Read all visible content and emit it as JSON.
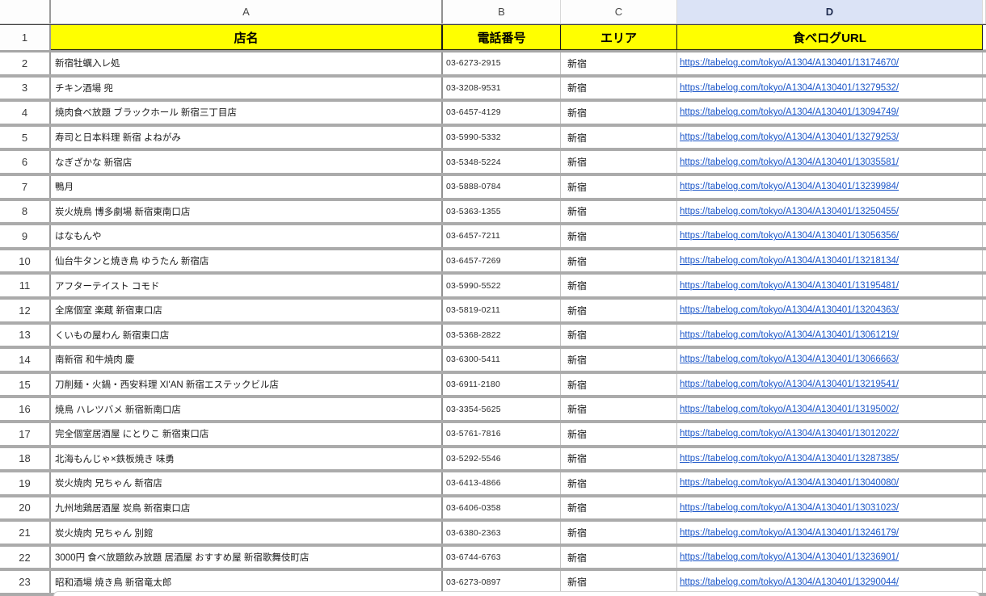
{
  "sheet": {
    "column_letters": {
      "a": "A",
      "b": "B",
      "c": "C",
      "d": "D"
    },
    "selected_column": "D",
    "header_row": {
      "row_number": "1",
      "name_label": "店名",
      "phone_label": "電話番号",
      "area_label": "エリア",
      "url_label": "食べログURL"
    },
    "colors": {
      "header_fill": "#ffff00",
      "selected_column_header_fill": "#dbe3f6",
      "link_color": "#1a55c8",
      "row_separator": "#ababab"
    },
    "rows": [
      {
        "num": "2",
        "name": "新宿牡蠣入レ処",
        "phone": "03-6273-2915",
        "area": "新宿",
        "url": "https://tabelog.com/tokyo/A1304/A130401/13174670/"
      },
      {
        "num": "3",
        "name": "チキン酒場 兜",
        "phone": "03-3208-9531",
        "area": "新宿",
        "url": "https://tabelog.com/tokyo/A1304/A130401/13279532/"
      },
      {
        "num": "4",
        "name": "焼肉食べ放題 ブラックホール 新宿三丁目店",
        "phone": "03-6457-4129",
        "area": "新宿",
        "url": "https://tabelog.com/tokyo/A1304/A130401/13094749/"
      },
      {
        "num": "5",
        "name": "寿司と日本料理 新宿 よねがみ",
        "phone": "03-5990-5332",
        "area": "新宿",
        "url": "https://tabelog.com/tokyo/A1304/A130401/13279253/"
      },
      {
        "num": "6",
        "name": "なぎざかな 新宿店",
        "phone": "03-5348-5224",
        "area": "新宿",
        "url": "https://tabelog.com/tokyo/A1304/A130401/13035581/"
      },
      {
        "num": "7",
        "name": "鴨月",
        "phone": "03-5888-0784",
        "area": "新宿",
        "url": "https://tabelog.com/tokyo/A1304/A130401/13239984/"
      },
      {
        "num": "8",
        "name": "炭火焼鳥 博多劇場 新宿東南口店",
        "phone": "03-5363-1355",
        "area": "新宿",
        "url": "https://tabelog.com/tokyo/A1304/A130401/13250455/"
      },
      {
        "num": "9",
        "name": "はなもんや",
        "phone": "03-6457-7211",
        "area": "新宿",
        "url": "https://tabelog.com/tokyo/A1304/A130401/13056356/"
      },
      {
        "num": "10",
        "name": "仙台牛タンと焼き鳥 ゆうたん 新宿店",
        "phone": "03-6457-7269",
        "area": "新宿",
        "url": "https://tabelog.com/tokyo/A1304/A130401/13218134/"
      },
      {
        "num": "11",
        "name": "アフターテイスト コモド",
        "phone": "03-5990-5522",
        "area": "新宿",
        "url": "https://tabelog.com/tokyo/A1304/A130401/13195481/"
      },
      {
        "num": "12",
        "name": "全席個室 楽蔵 新宿東口店",
        "phone": "03-5819-0211",
        "area": "新宿",
        "url": "https://tabelog.com/tokyo/A1304/A130401/13204363/"
      },
      {
        "num": "13",
        "name": "くいもの屋わん 新宿東口店",
        "phone": "03-5368-2822",
        "area": "新宿",
        "url": "https://tabelog.com/tokyo/A1304/A130401/13061219/"
      },
      {
        "num": "14",
        "name": "南新宿 和牛焼肉 慶",
        "phone": "03-6300-5411",
        "area": "新宿",
        "url": "https://tabelog.com/tokyo/A1304/A130401/13066663/"
      },
      {
        "num": "15",
        "name": "刀削麺・火鍋・西安料理 XI'AN 新宿エステックビル店",
        "phone": "03-6911-2180",
        "area": "新宿",
        "url": "https://tabelog.com/tokyo/A1304/A130401/13219541/"
      },
      {
        "num": "16",
        "name": "焼鳥 ハレツバメ 新宿新南口店",
        "phone": "03-3354-5625",
        "area": "新宿",
        "url": "https://tabelog.com/tokyo/A1304/A130401/13195002/"
      },
      {
        "num": "17",
        "name": "完全個室居酒屋 にとりこ 新宿東口店",
        "phone": "03-5761-7816",
        "area": "新宿",
        "url": "https://tabelog.com/tokyo/A1304/A130401/13012022/"
      },
      {
        "num": "18",
        "name": "北海もんじゃ×鉄板焼き 味勇",
        "phone": "03-5292-5546",
        "area": "新宿",
        "url": "https://tabelog.com/tokyo/A1304/A130401/13287385/"
      },
      {
        "num": "19",
        "name": "炭火焼肉 兄ちゃん 新宿店",
        "phone": "03-6413-4866",
        "area": "新宿",
        "url": "https://tabelog.com/tokyo/A1304/A130401/13040080/"
      },
      {
        "num": "20",
        "name": "九州地鶏居酒屋 炭鳥 新宿東口店",
        "phone": "03-6406-0358",
        "area": "新宿",
        "url": "https://tabelog.com/tokyo/A1304/A130401/13031023/"
      },
      {
        "num": "21",
        "name": "炭火焼肉 兄ちゃん 別館",
        "phone": "03-6380-2363",
        "area": "新宿",
        "url": "https://tabelog.com/tokyo/A1304/A130401/13246179/"
      },
      {
        "num": "22",
        "name": "3000円 食べ放題飲み放題 居酒屋 おすすめ屋 新宿歌舞伎町店",
        "phone": "03-6744-6763",
        "area": "新宿",
        "url": "https://tabelog.com/tokyo/A1304/A130401/13236901/"
      },
      {
        "num": "23",
        "name": "昭和酒場 焼き鳥 新宿竜太郎",
        "phone": "03-6273-0897",
        "area": "新宿",
        "url": "https://tabelog.com/tokyo/A1304/A130401/13290044/"
      }
    ]
  }
}
